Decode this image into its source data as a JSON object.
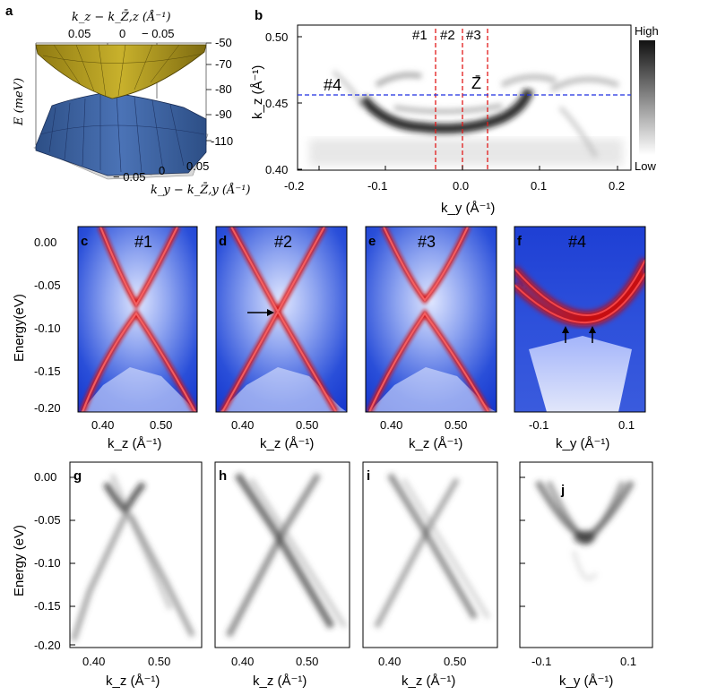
{
  "panels": {
    "a": {
      "label": "a",
      "top_axis_label": "k_z − k_Z̄,z (Å⁻¹)",
      "top_ticks": [
        "0.05",
        "0",
        "− 0.05"
      ],
      "z_axis_label": "E (meV)",
      "z_ticks": [
        "-50",
        "-70",
        "-80",
        "-90",
        "-110"
      ],
      "bottom_axis_label": "k_y − k_Z̄,y (Å⁻¹)",
      "bottom_ticks": [
        "− 0.05",
        "0",
        "0.05"
      ]
    },
    "b": {
      "label": "b",
      "y_label": "k_z (Å⁻¹)",
      "x_label": "k_y (Å⁻¹)",
      "y_ticks": [
        "0.50",
        "0.45",
        "0.40"
      ],
      "x_ticks": [
        "-0.2",
        "-0.1",
        "0.0",
        "0.1",
        "0.2"
      ],
      "cuts": [
        "#1",
        "#2",
        "#3"
      ],
      "cut4": "#4",
      "point_label": "Z̄",
      "colorbar_high": "High",
      "colorbar_low": "Low",
      "x_range": [
        -0.2,
        0.2
      ],
      "y_range": [
        0.4,
        0.51
      ],
      "vertical_cut_ky": [
        -0.035,
        0.0,
        0.03
      ],
      "horizontal_cut_kz": 0.457
    },
    "calc": {
      "y_label": "Energy(eV)",
      "y_ticks": [
        "0.00",
        "-0.05",
        "-0.10",
        "-0.15",
        "-0.20"
      ],
      "kz_ticks": [
        "0.40",
        "0.50"
      ],
      "ky_ticks": [
        "-0.1",
        "0.1"
      ],
      "kz_label": "k_z (Å⁻¹)",
      "ky_label": "k_y (Å⁻¹)",
      "panels": [
        {
          "label": "c",
          "cut": "#1"
        },
        {
          "label": "d",
          "cut": "#2"
        },
        {
          "label": "e",
          "cut": "#3"
        },
        {
          "label": "f",
          "cut": "#4"
        }
      ]
    },
    "exp": {
      "y_label": "Energy (eV)",
      "y_ticks": [
        "0.00",
        "-0.05",
        "-0.10",
        "-0.15",
        "-0.20"
      ],
      "kz_ticks": [
        "0.40",
        "0.50"
      ],
      "ky_ticks": [
        "-0.1",
        "0.1"
      ],
      "kz_label": "k_z (Å⁻¹)",
      "ky_label": "k_y (Å⁻¹)",
      "panels": [
        {
          "label": "g"
        },
        {
          "label": "h"
        },
        {
          "label": "i"
        },
        {
          "label": "j"
        }
      ]
    }
  }
}
